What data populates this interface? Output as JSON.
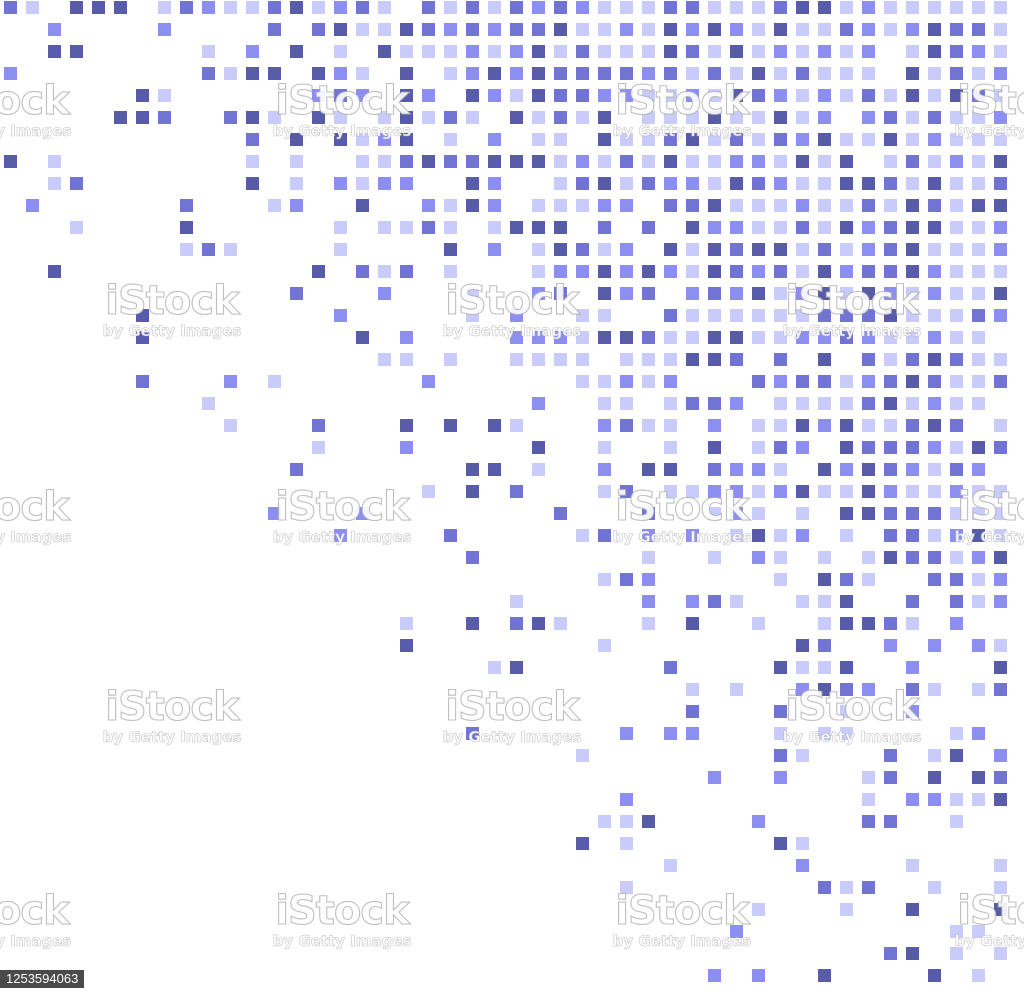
{
  "colors": {
    "background": "#ffffff",
    "square_light": "#c9cbfa",
    "square_medium": "#8c8ef0",
    "square_dark": "#7174d2",
    "square_darkest": "#585ba8"
  },
  "watermark": {
    "brand": "iStock",
    "credit": "by Getty Images"
  },
  "image_id": "1253594063"
}
